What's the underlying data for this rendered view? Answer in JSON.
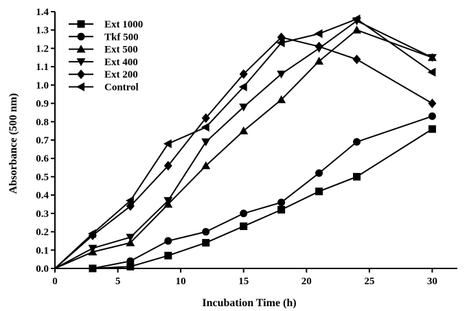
{
  "chart_data": {
    "type": "line",
    "title": "",
    "xlabel": "Incubation Time (h)",
    "ylabel": "Absorbance (500 nm)",
    "xlim": [
      0,
      32
    ],
    "ylim": [
      0,
      1.4
    ],
    "xticks": [
      0,
      5,
      10,
      15,
      20,
      25,
      30
    ],
    "xtick_labels": [
      "0",
      "5",
      "10",
      "15",
      "20",
      "25",
      "30"
    ],
    "yticks": [
      0,
      0.1,
      0.2,
      0.3,
      0.4,
      0.5,
      0.6,
      0.7,
      0.8,
      0.9,
      1.0,
      1.1,
      1.2,
      1.3,
      1.4
    ],
    "ytick_labels": [
      "0.0",
      "0.1",
      "0.2",
      "0.3",
      "0.4",
      "0.5",
      "0.6",
      "0.7",
      "0.8",
      "0.9",
      "1.0",
      "1.1",
      "1.2",
      "1.3",
      "1.4"
    ],
    "grid": false,
    "legend_position": "top-left",
    "series": [
      {
        "name": "Ext 1000",
        "marker": "square",
        "x": [
          0,
          3,
          6,
          9,
          12,
          15,
          18,
          21,
          24,
          30
        ],
        "y": [
          0,
          0,
          0.01,
          0.07,
          0.14,
          0.23,
          0.32,
          0.42,
          0.5,
          0.76
        ]
      },
      {
        "name": "Tkf 500",
        "marker": "circle",
        "x": [
          0,
          3,
          6,
          9,
          12,
          15,
          18,
          21,
          24,
          30
        ],
        "y": [
          0,
          0,
          0.04,
          0.15,
          0.2,
          0.3,
          0.36,
          0.52,
          0.69,
          0.83
        ]
      },
      {
        "name": "Ext 500",
        "marker": "triangle-up",
        "x": [
          0,
          3,
          6,
          9,
          12,
          15,
          18,
          21,
          24,
          30
        ],
        "y": [
          0,
          0.09,
          0.14,
          0.35,
          0.56,
          0.75,
          0.92,
          1.13,
          1.3,
          1.15
        ]
      },
      {
        "name": "Ext 400",
        "marker": "triangle-down",
        "x": [
          0,
          3,
          6,
          9,
          12,
          15,
          18,
          21,
          24,
          30
        ],
        "y": [
          0,
          0.11,
          0.17,
          0.37,
          0.69,
          0.88,
          1.06,
          1.2,
          1.35,
          1.15
        ]
      },
      {
        "name": "Ext 200",
        "marker": "diamond",
        "x": [
          0,
          3,
          6,
          9,
          12,
          15,
          18,
          21,
          24,
          30
        ],
        "y": [
          0,
          0.18,
          0.34,
          0.56,
          0.82,
          1.06,
          1.26,
          1.21,
          1.14,
          0.9
        ]
      },
      {
        "name": "Control",
        "marker": "triangle-left",
        "x": [
          0,
          3,
          6,
          9,
          12,
          15,
          18,
          21,
          24,
          30
        ],
        "y": [
          0,
          0.19,
          0.37,
          0.68,
          0.77,
          0.99,
          1.23,
          1.28,
          1.36,
          1.07
        ]
      }
    ]
  }
}
